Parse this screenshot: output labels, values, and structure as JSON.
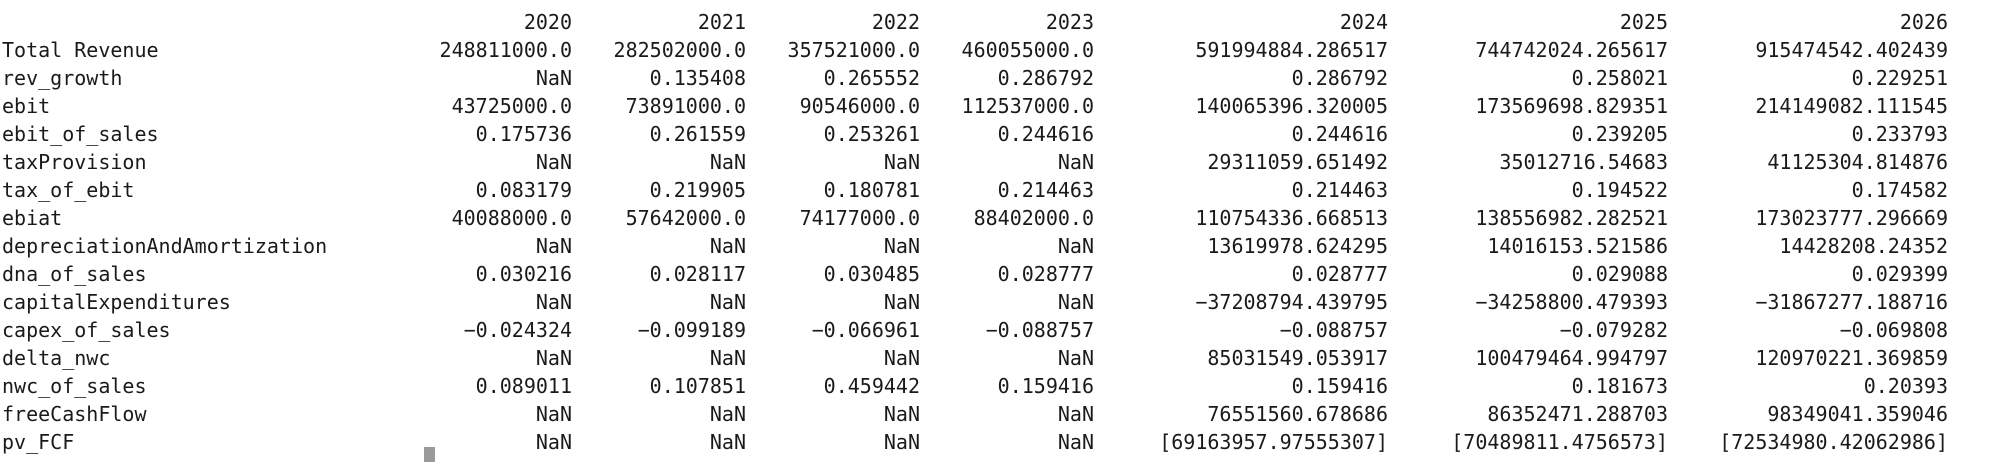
{
  "table": {
    "columns": [
      "2020",
      "2021",
      "2022",
      "2023",
      "2024",
      "2025",
      "2026"
    ],
    "rows": [
      {
        "label": "Total Revenue",
        "values": [
          "248811000.0",
          "282502000.0",
          "357521000.0",
          "460055000.0",
          "591994884.286517",
          "744742024.265617",
          "915474542.402439"
        ]
      },
      {
        "label": "rev_growth",
        "values": [
          "NaN",
          "0.135408",
          "0.265552",
          "0.286792",
          "0.286792",
          "0.258021",
          "0.229251"
        ]
      },
      {
        "label": "ebit",
        "values": [
          "43725000.0",
          "73891000.0",
          "90546000.0",
          "112537000.0",
          "140065396.320005",
          "173569698.829351",
          "214149082.111545"
        ]
      },
      {
        "label": "ebit_of_sales",
        "values": [
          "0.175736",
          "0.261559",
          "0.253261",
          "0.244616",
          "0.244616",
          "0.239205",
          "0.233793"
        ]
      },
      {
        "label": "taxProvision",
        "values": [
          "NaN",
          "NaN",
          "NaN",
          "NaN",
          "29311059.651492",
          "35012716.54683",
          "41125304.814876"
        ]
      },
      {
        "label": "tax_of_ebit",
        "values": [
          "0.083179",
          "0.219905",
          "0.180781",
          "0.214463",
          "0.214463",
          "0.194522",
          "0.174582"
        ]
      },
      {
        "label": "ebiat",
        "values": [
          "40088000.0",
          "57642000.0",
          "74177000.0",
          "88402000.0",
          "110754336.668513",
          "138556982.282521",
          "173023777.296669"
        ]
      },
      {
        "label": "depreciationAndAmortization",
        "values": [
          "NaN",
          "NaN",
          "NaN",
          "NaN",
          "13619978.624295",
          "14016153.521586",
          "14428208.24352"
        ]
      },
      {
        "label": "dna_of_sales",
        "values": [
          "0.030216",
          "0.028117",
          "0.030485",
          "0.028777",
          "0.028777",
          "0.029088",
          "0.029399"
        ]
      },
      {
        "label": "capitalExpenditures",
        "values": [
          "NaN",
          "NaN",
          "NaN",
          "NaN",
          "−37208794.439795",
          "−34258800.479393",
          "−31867277.188716"
        ]
      },
      {
        "label": "capex_of_sales",
        "values": [
          "−0.024324",
          "−0.099189",
          "−0.066961",
          "−0.088757",
          "−0.088757",
          "−0.079282",
          "−0.069808"
        ]
      },
      {
        "label": "delta_nwc",
        "values": [
          "NaN",
          "NaN",
          "NaN",
          "NaN",
          "85031549.053917",
          "100479464.994797",
          "120970221.369859"
        ]
      },
      {
        "label": "nwc_of_sales",
        "values": [
          "0.089011",
          "0.107851",
          "0.459442",
          "0.159416",
          "0.159416",
          "0.181673",
          "0.20393"
        ]
      },
      {
        "label": "freeCashFlow",
        "values": [
          "NaN",
          "NaN",
          "NaN",
          "NaN",
          "76551560.678686",
          "86352471.288703",
          "98349041.359046"
        ]
      },
      {
        "label": "pv_FCF",
        "values": [
          "NaN",
          "NaN",
          "NaN",
          "NaN",
          "[69163957.97555307]",
          "[70489811.4756573]",
          "[72534980.42062986]"
        ]
      }
    ]
  }
}
